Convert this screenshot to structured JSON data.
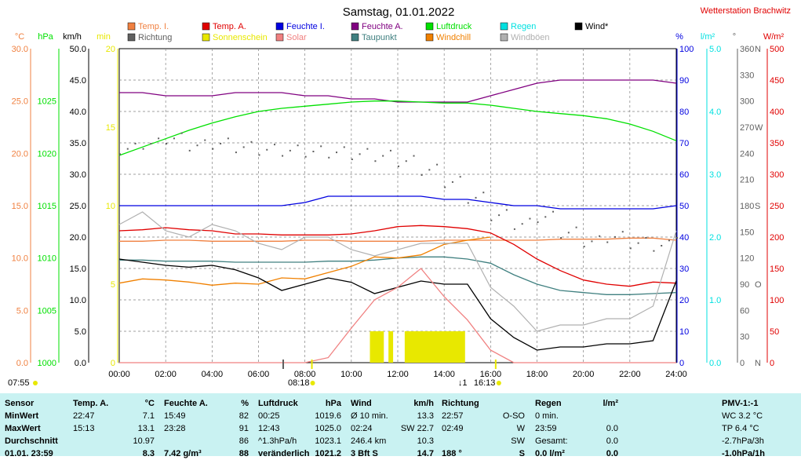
{
  "title": "Samstag, 01.01.2022",
  "station": "Wetterstation Brachwitz",
  "colors": {
    "temp_i": "#f08040",
    "temp_a": "#e00000",
    "feuchte_i": "#0000e0",
    "feuchte_a": "#800080",
    "luftdruck": "#00e000",
    "regen": "#00e0e0",
    "wind": "#000000",
    "richtung": "#606060",
    "sonnenschein": "#e8e800",
    "solar": "#f08080",
    "taupunkt": "#408080",
    "windchill": "#f08000",
    "windboeen": "#b0b0b0",
    "panel": "#c9f2f2"
  },
  "legend": [
    {
      "label": "Temp. I.",
      "color_key": "temp_i"
    },
    {
      "label": "Temp. A.",
      "color_key": "temp_a"
    },
    {
      "label": "Feuchte I.",
      "color_key": "feuchte_i"
    },
    {
      "label": "Feuchte A.",
      "color_key": "feuchte_a"
    },
    {
      "label": "Luftdruck",
      "color_key": "luftdruck"
    },
    {
      "label": "Regen",
      "color_key": "regen"
    },
    {
      "label": "Wind*",
      "color_key": "wind"
    },
    {
      "label": "Richtung",
      "color_key": "richtung"
    },
    {
      "label": "Sonnenschein",
      "color_key": "sonnenschein"
    },
    {
      "label": "Solar",
      "color_key": "solar"
    },
    {
      "label": "Taupunkt",
      "color_key": "taupunkt"
    },
    {
      "label": "Windchill",
      "color_key": "windchill"
    },
    {
      "label": "Windböen",
      "color_key": "windboeen"
    }
  ],
  "chart_data": {
    "type": "line",
    "x_unit": "time of day",
    "x_ticks": [
      "00:00",
      "02:00",
      "04:00",
      "06:00",
      "08:00",
      "10:00",
      "12:00",
      "14:00",
      "16:00",
      "18:00",
      "20:00",
      "22:00",
      "24:00"
    ],
    "axes": [
      {
        "unit": "°C",
        "ticks": [
          "0.0",
          "5.0",
          "10.0",
          "15.0",
          "20.0",
          "25.0",
          "30.0"
        ],
        "color_key": "temp_i",
        "range": [
          0,
          30
        ]
      },
      {
        "unit": "hPa",
        "ticks": [
          "1000",
          "1005",
          "1010",
          "1015",
          "1020",
          "1025"
        ],
        "color_key": "luftdruck",
        "range": [
          1000,
          1030
        ]
      },
      {
        "unit": "km/h",
        "ticks": [
          "0.0",
          "5.0",
          "10.0",
          "15.0",
          "20.0",
          "25.0",
          "30.0",
          "35.0",
          "40.0",
          "45.0",
          "50.0"
        ],
        "color_key": "wind",
        "range": [
          0,
          50
        ]
      },
      {
        "unit": "min",
        "ticks": [
          "0",
          "5",
          "10",
          "15",
          "20"
        ],
        "color_key": "sonnenschein",
        "range": [
          0,
          20
        ]
      },
      {
        "unit": "%",
        "ticks": [
          "0",
          "10",
          "20",
          "30",
          "40",
          "50",
          "60",
          "70",
          "80",
          "90",
          "100"
        ],
        "color_key": "feuchte_i",
        "range": [
          0,
          100
        ]
      },
      {
        "unit": "l/m²",
        "ticks": [
          "0.0",
          "1.0",
          "2.0",
          "3.0",
          "4.0",
          "5.0"
        ],
        "color_key": "regen",
        "range": [
          0,
          5
        ]
      },
      {
        "unit": "°",
        "ticks": [
          "0",
          "30",
          "60",
          "90",
          "120",
          "150",
          "180",
          "210",
          "240",
          "270",
          "300",
          "330",
          "360"
        ],
        "color_key": "richtung",
        "range": [
          0,
          360
        ]
      },
      {
        "unit": "W/m²",
        "ticks": [
          "0",
          "50",
          "100",
          "150",
          "200",
          "250",
          "300",
          "350",
          "400",
          "450",
          "500"
        ],
        "color_key": "temp_a",
        "range": [
          0,
          500
        ]
      }
    ],
    "compass_labels": [
      {
        "label": "N",
        "value": 0
      },
      {
        "label": "O",
        "value": 90
      },
      {
        "label": "S",
        "value": 180
      },
      {
        "label": "W",
        "value": 270
      },
      {
        "label": "N",
        "value": 360
      }
    ],
    "events": [
      {
        "label": "07:55",
        "time": 7.92,
        "kind": "sunrise"
      },
      {
        "label": "08:18",
        "time": 8.3,
        "kind": "sun"
      },
      {
        "label": "16:13",
        "time": 16.22,
        "kind": "sunset"
      }
    ],
    "event_prefix": "↓1",
    "hour_points": [
      0,
      1,
      2,
      3,
      4,
      5,
      6,
      7,
      8,
      9,
      10,
      11,
      12,
      13,
      14,
      15,
      16,
      17,
      18,
      19,
      20,
      21,
      22,
      23,
      24
    ],
    "series": [
      {
        "name": "Temp. I.",
        "axis": "°C",
        "color_key": "temp_i",
        "values": [
          11.6,
          11.6,
          11.7,
          11.7,
          11.6,
          11.6,
          11.6,
          11.6,
          11.7,
          11.7,
          11.6,
          11.6,
          11.6,
          11.6,
          11.7,
          11.7,
          11.7,
          11.7,
          11.7,
          11.8,
          11.8,
          11.8,
          11.9,
          11.9,
          11.7
        ]
      },
      {
        "name": "Temp. A.",
        "axis": "°C",
        "color_key": "temp_a",
        "values": [
          12.6,
          12.7,
          12.9,
          12.7,
          12.6,
          12.3,
          12.3,
          12.2,
          12.2,
          12.2,
          12.3,
          12.6,
          13.0,
          13.1,
          13.0,
          12.8,
          12.4,
          11.3,
          9.9,
          8.8,
          7.9,
          7.5,
          7.3,
          7.7,
          7.6
        ]
      },
      {
        "name": "Taupunkt",
        "axis": "°C",
        "color_key": "taupunkt",
        "values": [
          9.8,
          9.8,
          9.7,
          9.7,
          9.7,
          9.6,
          9.6,
          9.6,
          9.6,
          9.7,
          9.7,
          9.8,
          10.0,
          10.1,
          10.1,
          9.9,
          9.5,
          8.4,
          7.5,
          6.9,
          6.7,
          6.5,
          6.5,
          6.6,
          6.7
        ]
      },
      {
        "name": "Windchill",
        "axis": "°C",
        "color_key": "windchill",
        "values": [
          7.6,
          8.0,
          7.9,
          7.7,
          7.4,
          7.6,
          7.5,
          8.1,
          8.0,
          8.6,
          9.2,
          10.1,
          10.0,
          10.3,
          11.3,
          11.7,
          12.0
        ]
      },
      {
        "name": "Feuchte I.",
        "axis": "%",
        "color_key": "feuchte_i",
        "values": [
          50,
          50,
          50,
          50,
          50,
          50,
          50,
          50,
          51,
          53,
          53,
          53,
          53,
          53,
          52,
          52,
          51,
          50,
          50,
          49,
          49,
          49,
          49,
          49,
          50
        ]
      },
      {
        "name": "Feuchte A.",
        "axis": "%",
        "color_key": "feuchte_a",
        "values": [
          86,
          86,
          85,
          85,
          85,
          86,
          86,
          86,
          85,
          85,
          84,
          84,
          83,
          83,
          83,
          83,
          85,
          87,
          89,
          90,
          90,
          90,
          90,
          90,
          89
        ]
      },
      {
        "name": "Luftdruck",
        "axis": "hPa",
        "color_key": "luftdruck",
        "values": [
          1019.8,
          1020.6,
          1021.4,
          1022.2,
          1022.9,
          1023.5,
          1024.0,
          1024.3,
          1024.5,
          1024.7,
          1024.9,
          1025.0,
          1025.0,
          1024.9,
          1024.8,
          1024.8,
          1024.6,
          1024.3,
          1024.0,
          1023.8,
          1023.6,
          1023.3,
          1022.8,
          1022.1,
          1021.2
        ]
      },
      {
        "name": "Wind*",
        "axis": "km/h",
        "color_key": "wind",
        "values": [
          16.5,
          16.0,
          15.5,
          15.2,
          15.5,
          14.8,
          13.5,
          11.5,
          12.5,
          13.5,
          12.8,
          11.0,
          12.0,
          13.0,
          12.5,
          12.5,
          7.0,
          4.0,
          2.0,
          2.5,
          2.5,
          3.0,
          3.0,
          3.5,
          13.0
        ]
      },
      {
        "name": "Windböen",
        "axis": "km/h",
        "color_key": "windboeen",
        "values": [
          22,
          24,
          21,
          20,
          22,
          21,
          19,
          18,
          20,
          20,
          18,
          17,
          18,
          19,
          19,
          19,
          12,
          9,
          5,
          6,
          6,
          7,
          7,
          9,
          21
        ]
      },
      {
        "name": "Richtung",
        "axis": "°",
        "color_key": "richtung",
        "values": [
          246,
          252,
          258,
          250,
          252,
          248,
          245,
          244,
          243,
          242,
          240,
          238,
          232,
          222,
          208,
          190,
          170,
          160,
          168,
          150,
          140,
          145,
          138,
          135,
          150
        ]
      },
      {
        "name": "Solar",
        "axis": "W/m²",
        "color_key": "solar",
        "values": [
          0,
          0,
          0,
          0,
          0,
          0,
          0,
          0,
          0,
          8,
          55,
          100,
          120,
          150,
          105,
          68,
          20,
          0,
          0,
          0,
          0,
          0,
          0,
          0,
          0
        ]
      },
      {
        "name": "Sonnenschein",
        "axis": "min",
        "color_key": "sonnenschein",
        "type": "bar",
        "intervals": [
          [
            10.8,
            11.4
          ],
          [
            11.6,
            11.8
          ],
          [
            12.3,
            14.9
          ]
        ],
        "value": 2
      }
    ]
  },
  "table": {
    "columns": [
      {
        "h1": "Sensor",
        "h2": "",
        "r1a": "MinWert",
        "r1b": "",
        "r2a": "MaxWert",
        "r2b": "",
        "r3a": "Durchschnitt",
        "r3b": "",
        "r4a": "01.01. 23:59",
        "r4b": ""
      },
      {
        "h1": "Temp. A.",
        "h2": "°C",
        "r1a": "22:47",
        "r1b": "7.1",
        "r2a": "15:13",
        "r2b": "13.1",
        "r3a": "",
        "r3b": "10.97",
        "r4a": "",
        "r4b": "8.3"
      },
      {
        "h1": "Feuchte A.",
        "h2": "%",
        "r1a": "15:49",
        "r1b": "82",
        "r2a": "23:28",
        "r2b": "91",
        "r3a": "",
        "r3b": "86",
        "r4a": "7.42 g/m³",
        "r4b": "88"
      },
      {
        "h1": "Luftdruck",
        "h2": "hPa",
        "r1a": "00:25",
        "r1b": "1019.6",
        "r2a": "12:43",
        "r2b": "1025.0",
        "r3a": "^1.3hPa/h",
        "r3b": "1023.1",
        "r4a": "veränderlich",
        "r4b": "1021.2"
      },
      {
        "h1": "Wind",
        "h2": "km/h",
        "r1a": "Ø 10 min.",
        "r1b": "13.3",
        "r2a": "02:24",
        "r2b": "SW 22.7",
        "r3a": "246.4 km",
        "r3b": "10.3",
        "r4a": "3 Bft S",
        "r4b": "14.7"
      },
      {
        "h1": "Richtung",
        "h2": "",
        "r1a": "22:57",
        "r1b": "O-SO",
        "r2a": "02:49",
        "r2b": "W",
        "r3a": "",
        "r3b": "SW",
        "r4a": "188 °",
        "r4b": "S"
      },
      {
        "h1": "Regen",
        "h2": "l/m²",
        "r1a": "0 min.",
        "r1b": "",
        "r2a": "23:59",
        "r2b": "0.0",
        "r3a": "Gesamt:",
        "r3b": "0.0",
        "r4a": "0.0 l/m²",
        "r4b": "0.0"
      },
      {
        "h1": "PMV-1:-1",
        "h2": "",
        "r1a": "WC 3.2 °C",
        "r1b": "",
        "r2a": "TP 6.4 °C",
        "r2b": "",
        "r3a": "-2.7hPa/3h",
        "r3b": "",
        "r4a": "-1.0hPa/1h",
        "r4b": ""
      }
    ]
  }
}
